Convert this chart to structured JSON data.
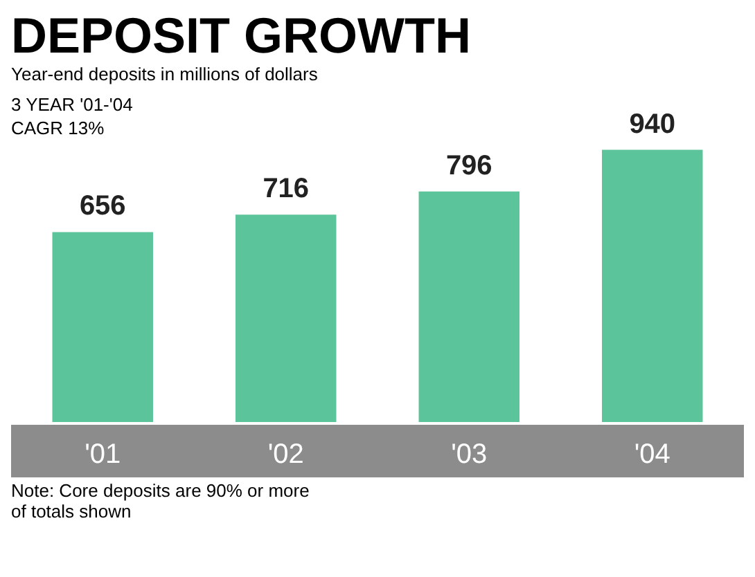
{
  "chart_data": {
    "type": "bar",
    "title": "DEPOSIT GROWTH",
    "subtitle": "Year-end deposits in millions of dollars",
    "annotations": [
      "3 YEAR '01-'04 CAGR 13%",
      "Note: Core deposits are 90% or more of totals shown"
    ],
    "categories": [
      "'01",
      "'02",
      "'03",
      "'04"
    ],
    "values": [
      656,
      716,
      796,
      940
    ],
    "color": "#5cc49a",
    "data_labels": true,
    "legend": false,
    "grid": false
  }
}
